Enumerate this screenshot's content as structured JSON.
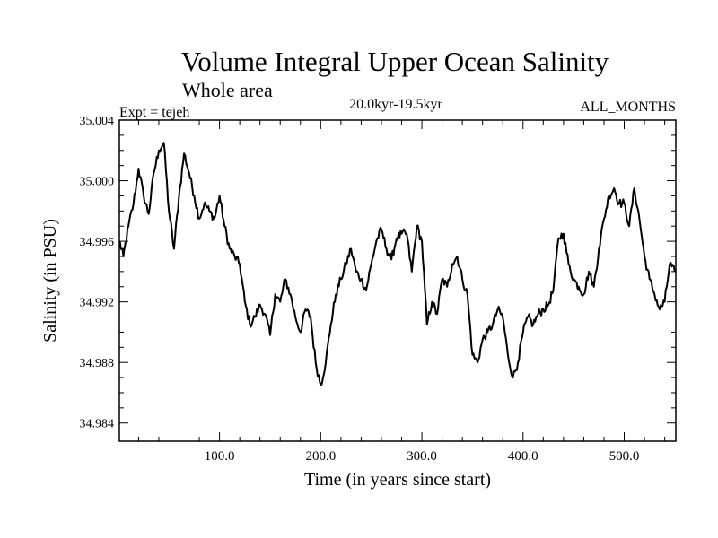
{
  "chart_data": {
    "type": "line",
    "title": "Volume Integral Upper Ocean Salinity",
    "subtitle": "Whole area",
    "annotations": {
      "experiment": "Expt = tejeh",
      "period": "20.0kyr-19.5kyr",
      "months": "ALL_MONTHS"
    },
    "xlabel": "Time (in years since start)",
    "ylabel": "Salinity (in PSU)",
    "xlim": [
      1,
      551
    ],
    "ylim": [
      34.9828,
      35.004
    ],
    "x_ticks": [
      100,
      200,
      300,
      400,
      500
    ],
    "x_tick_labels": [
      "100.0",
      "200.0",
      "300.0",
      "400.0",
      "500.0"
    ],
    "y_ticks": [
      34.984,
      34.988,
      34.992,
      34.996,
      35.0,
      35.004
    ],
    "y_tick_labels": [
      "34.984",
      "34.988",
      "34.992",
      "34.996",
      "35.000",
      "35.004"
    ],
    "grid": false,
    "line_color": "#000000",
    "series": [
      {
        "name": "Salinity",
        "x": [
          1,
          5,
          10,
          15,
          20,
          25,
          30,
          35,
          40,
          45,
          50,
          55,
          60,
          65,
          70,
          75,
          80,
          85,
          90,
          95,
          100,
          105,
          110,
          115,
          120,
          125,
          130,
          135,
          140,
          145,
          150,
          155,
          160,
          165,
          170,
          175,
          180,
          185,
          190,
          195,
          200,
          205,
          210,
          215,
          220,
          225,
          230,
          235,
          240,
          245,
          250,
          255,
          260,
          265,
          270,
          275,
          280,
          285,
          290,
          295,
          300,
          305,
          310,
          315,
          320,
          325,
          330,
          335,
          340,
          345,
          350,
          355,
          360,
          365,
          370,
          375,
          380,
          385,
          390,
          395,
          400,
          405,
          410,
          415,
          420,
          425,
          430,
          435,
          440,
          445,
          450,
          455,
          460,
          465,
          470,
          475,
          480,
          485,
          490,
          495,
          500,
          505,
          510,
          515,
          520,
          525,
          530,
          535,
          540,
          545,
          550
        ],
        "values": [
          34.996,
          34.995,
          34.997,
          34.9985,
          35.0008,
          34.999,
          34.9978,
          35.0005,
          35.002,
          35.0025,
          34.998,
          34.9955,
          34.999,
          35.0018,
          35.0005,
          34.999,
          34.9975,
          34.9985,
          34.998,
          34.9975,
          34.999,
          34.997,
          34.9955,
          34.995,
          34.9945,
          34.992,
          34.9905,
          34.991,
          34.9918,
          34.9912,
          34.9898,
          34.9925,
          34.992,
          34.9935,
          34.9925,
          34.991,
          34.99,
          34.9915,
          34.991,
          34.988,
          34.9865,
          34.988,
          34.9905,
          34.9925,
          34.9935,
          34.9945,
          34.9955,
          34.994,
          34.9935,
          34.9928,
          34.9945,
          34.996,
          34.9968,
          34.9955,
          34.9948,
          34.9962,
          34.9965,
          34.9965,
          34.994,
          34.997,
          34.996,
          34.9905,
          34.992,
          34.9912,
          34.9935,
          34.993,
          34.9945,
          34.995,
          34.9935,
          34.9925,
          34.9885,
          34.988,
          34.9895,
          34.99,
          34.9905,
          34.9915,
          34.991,
          34.9885,
          34.987,
          34.988,
          34.99,
          34.991,
          34.9905,
          34.9912,
          34.9915,
          34.9918,
          34.9928,
          34.9962,
          34.9965,
          34.9945,
          34.9935,
          34.993,
          34.9925,
          34.994,
          34.993,
          34.9955,
          34.9975,
          34.999,
          34.9995,
          34.9985,
          34.9985,
          34.997,
          34.9995,
          34.9975,
          34.995,
          34.9935,
          34.9925,
          34.9915,
          34.992,
          34.9945,
          34.994
        ]
      }
    ]
  }
}
